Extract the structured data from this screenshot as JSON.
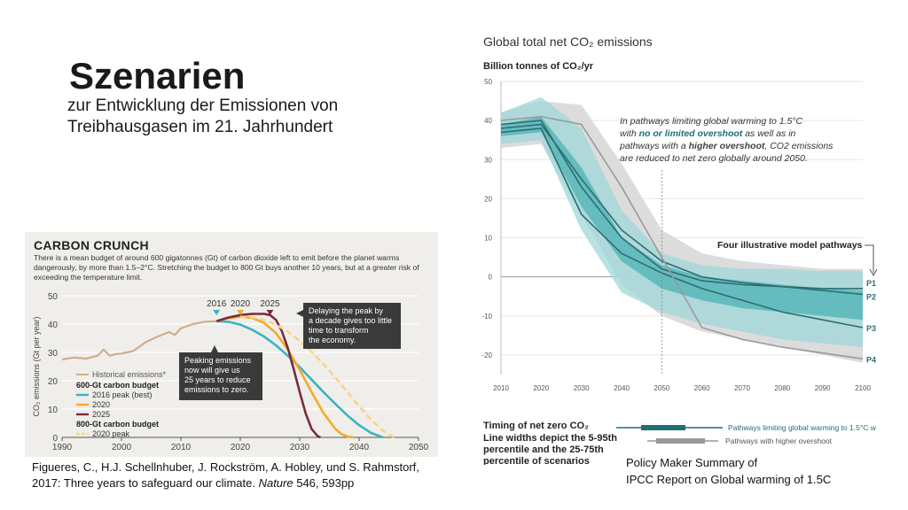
{
  "slide": {
    "title": "Szenarien",
    "subtitle_line1": "zur Entwicklung der Emissionen von",
    "subtitle_line2": "Treibhausgasen im 21. Jahrhundert"
  },
  "citation": {
    "line1": "Figueres, C., H.J. Schellnhuber, J. Rockström, A. Hobley, und S. Rahmstorf,",
    "line2_prefix": "2017: Three years to safeguard our climate. ",
    "line2_journal": "Nature",
    "line2_suffix": " 546, 593pp"
  },
  "ipcc_caption": {
    "line1": "Policy Maker Summary of",
    "line2": "IPCC Report on Global warming of 1.5C"
  },
  "chart_data": [
    {
      "id": "carbon-crunch",
      "type": "line",
      "title": "CARBON CRUNCH",
      "description": "There is a mean budget of around 600 gigatonnes (Gt) of carbon dioxide left to emit before the planet warms dangerously, by more than 1.5–2°C. Stretching the budget to 800 Gt buys another 10 years, but at a greater risk of exceeding the temperature limit.",
      "ylabel": "CO₂ emissions (Gt per year)",
      "xlim": [
        1990,
        2050
      ],
      "ylim": [
        0,
        50
      ],
      "x_ticks": [
        1990,
        2000,
        2010,
        2020,
        2030,
        2040,
        2050
      ],
      "y_ticks": [
        0,
        10,
        20,
        30,
        40,
        50
      ],
      "peak_markers": [
        {
          "label": "2016",
          "year": 2016,
          "color": "#3bb3c3"
        },
        {
          "label": "2020",
          "year": 2020,
          "color": "#f0ac2c"
        },
        {
          "label": "2025",
          "year": 2025,
          "color": "#7a2a3c"
        }
      ],
      "annotations": [
        {
          "text": "Delaying the peak by a decade gives too little time to transform the economy."
        },
        {
          "text": "Peaking emissions now will give us 25 years to reduce emissions to zero."
        }
      ],
      "legend": {
        "historical": "Historical emissions*",
        "group1_title": "600-Gt carbon budget",
        "series1": "2016 peak (best)",
        "series2": "2020",
        "series3": "2025",
        "group2_title": "800-Gt carbon budget",
        "series4": "2020 peak"
      },
      "series": [
        {
          "name": "Historical emissions*",
          "color": "#cfae8c",
          "dash": false,
          "x": [
            1990,
            1992,
            1994,
            1996,
            1997,
            1998,
            1999,
            2000,
            2002,
            2004,
            2006,
            2008,
            2009,
            2010,
            2012,
            2014,
            2016
          ],
          "y": [
            27.5,
            28.2,
            27.8,
            28.8,
            31,
            28.8,
            29.4,
            29.6,
            30.5,
            33.5,
            35.5,
            37.2,
            36.2,
            38.5,
            40,
            40.8,
            41
          ]
        },
        {
          "name": "2016 peak (best)",
          "color": "#3bb3c3",
          "dash": false,
          "x": [
            2016,
            2018,
            2020,
            2022,
            2024,
            2026,
            2028,
            2030,
            2032,
            2034,
            2036,
            2038,
            2040,
            2042,
            2044
          ],
          "y": [
            41,
            40.8,
            39.8,
            38,
            35.6,
            32.5,
            28.8,
            24.8,
            20.4,
            16,
            11.8,
            7.8,
            4.3,
            1.6,
            0
          ]
        },
        {
          "name": "2020",
          "color": "#f0ac2c",
          "dash": false,
          "x": [
            2016,
            2018,
            2020,
            2022,
            2024,
            2026,
            2028,
            2030,
            2032,
            2034,
            2036,
            2037,
            2038,
            2039
          ],
          "y": [
            41,
            42.1,
            42.6,
            42.2,
            40.4,
            36.8,
            31,
            23.8,
            16,
            8.6,
            3,
            1.2,
            0.3,
            0
          ]
        },
        {
          "name": "2025",
          "color": "#7a2a3c",
          "dash": false,
          "x": [
            2016,
            2018,
            2020,
            2022,
            2024,
            2025,
            2026,
            2027,
            2028,
            2029,
            2030,
            2031,
            2032,
            2033,
            2033.5
          ],
          "y": [
            41,
            42.3,
            43.2,
            43.6,
            43.6,
            43.2,
            41.5,
            37.5,
            31.5,
            24,
            16,
            8.5,
            3,
            0.5,
            0
          ]
        },
        {
          "name": "2020 peak",
          "color": "#f7d486",
          "dash": true,
          "x": [
            2020,
            2022,
            2024,
            2026,
            2028,
            2030,
            2032,
            2034,
            2036,
            2038,
            2040,
            2042,
            2044,
            2045,
            2046
          ],
          "y": [
            42.6,
            42.4,
            41.5,
            39.8,
            37.3,
            34,
            30.2,
            25.9,
            21.1,
            16.1,
            11,
            6.3,
            2.4,
            0.9,
            0
          ]
        }
      ]
    },
    {
      "id": "ipcc-global-co2",
      "type": "area",
      "title": "Global total net CO₂ emissions",
      "ylabel": "Billion tonnes of CO₂/yr",
      "xlim": [
        2010,
        2100
      ],
      "ylim": [
        -25,
        50
      ],
      "x_ticks": [
        2010,
        2020,
        2030,
        2040,
        2050,
        2060,
        2070,
        2080,
        2090,
        2100
      ],
      "y_ticks": [
        50,
        40,
        30,
        20,
        10,
        0,
        -10,
        -20
      ],
      "callout": {
        "line1": "In pathways limiting global warming to 1.5°C",
        "line2_a": "with ",
        "line2_b": "no or limited overshoot",
        "line2_c": " as well as in",
        "line3_a": "pathways with a ",
        "line3_b": "higher overshoot",
        "line3_c": ", CO2 emissions",
        "line4": "are reduced to net zero globally around 2050."
      },
      "pathways_label": "Four illustrative model pathways",
      "timing": {
        "line1": "Timing of net zero CO₂",
        "line2": "Line widths depict the 5-95th",
        "line3": "percentile and the 25-75th",
        "line4": "percentile of scenarios",
        "legend_teal": "Pathways limiting global warming to 1.5°C w",
        "legend_grey": "Pathways with higher overshoot"
      },
      "bands": [
        {
          "name": "higher overshoot 5-95th",
          "color": "#d8d8d8",
          "x": [
            2010,
            2020,
            2030,
            2040,
            2050,
            2060,
            2070,
            2080,
            2090,
            2100
          ],
          "upper": [
            42,
            45,
            44,
            29,
            12,
            6,
            4,
            3,
            2,
            2
          ],
          "lower": [
            33,
            34,
            16,
            -2,
            -10,
            -14,
            -16,
            -18,
            -20,
            -22
          ]
        },
        {
          "name": "no or limited overshoot 5-95th",
          "color": "#9fd7d8",
          "x": [
            2010,
            2020,
            2030,
            2040,
            2050,
            2060,
            2070,
            2080,
            2090,
            2100
          ],
          "upper": [
            42,
            46,
            38,
            17,
            6,
            3,
            2,
            2,
            1.5,
            1.5
          ],
          "lower": [
            34,
            35,
            12,
            -4,
            -9,
            -12,
            -14,
            -16,
            -17,
            -18
          ]
        },
        {
          "name": "no or limited overshoot 25-75th",
          "color": "#4cb3b6",
          "x": [
            2010,
            2020,
            2030,
            2040,
            2050,
            2060,
            2070,
            2080,
            2090,
            2100
          ],
          "upper": [
            39,
            41,
            28,
            10,
            3,
            0,
            -1,
            -2,
            -3,
            -3.5
          ],
          "lower": [
            36,
            37,
            18,
            4,
            -3,
            -6,
            -8,
            -9,
            -10,
            -11
          ]
        }
      ],
      "series": [
        {
          "name": "P1",
          "label": "P1",
          "color": "#2d6e70",
          "x": [
            2010,
            2020,
            2030,
            2040,
            2050,
            2060,
            2070,
            2080,
            2090,
            2100
          ],
          "y": [
            39,
            40,
            23,
            10,
            2,
            -1,
            -2,
            -2.5,
            -3,
            -3
          ]
        },
        {
          "name": "P2",
          "label": "P2",
          "color": "#2d6e70",
          "x": [
            2010,
            2020,
            2030,
            2040,
            2050,
            2060,
            2070,
            2080,
            2090,
            2100
          ],
          "y": [
            38,
            39,
            25,
            12,
            4,
            0,
            -1.5,
            -2.5,
            -3.5,
            -4.5
          ]
        },
        {
          "name": "P3",
          "label": "P3",
          "color": "#2d6e70",
          "x": [
            2010,
            2020,
            2030,
            2040,
            2050,
            2060,
            2070,
            2080,
            2090,
            2100
          ],
          "y": [
            37,
            38,
            16,
            6,
            1,
            -3,
            -6,
            -9,
            -11,
            -13
          ]
        },
        {
          "name": "P4",
          "label": "P4",
          "color": "#9a9a9a",
          "x": [
            2010,
            2020,
            2030,
            2040,
            2050,
            2060,
            2070,
            2080,
            2090,
            2100
          ],
          "y": [
            40,
            41,
            39,
            23,
            5,
            -13,
            -16,
            -18,
            -19.5,
            -21
          ]
        }
      ]
    }
  ]
}
